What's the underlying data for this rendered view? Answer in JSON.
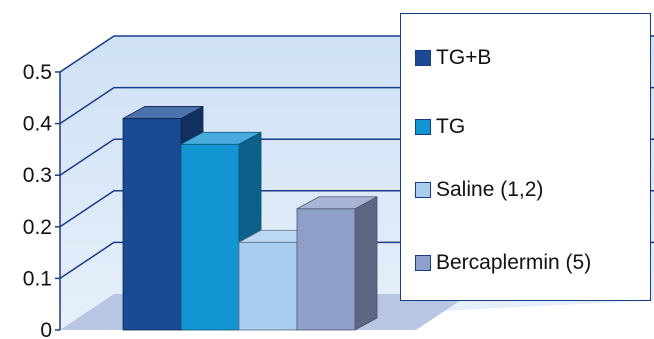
{
  "chart_data": {
    "type": "bar",
    "style": "3d",
    "title": "",
    "xlabel": "",
    "ylabel": "",
    "ylim": [
      0,
      0.5
    ],
    "yticks": [
      "0",
      "0.1",
      "0.2",
      "0.3",
      "0.4",
      "0.5"
    ],
    "grid": true,
    "legend_position": "right",
    "series": [
      {
        "name": "TG+B",
        "value": 0.41,
        "color": "#1a4a94"
      },
      {
        "name": "TG",
        "value": 0.36,
        "color": "#1395d4"
      },
      {
        "name": "Saline (1,2)",
        "value": 0.17,
        "color": "#a9cdee"
      },
      {
        "name": "Bercaplermin (5)",
        "value": 0.235,
        "color": "#8f9fca"
      }
    ]
  }
}
